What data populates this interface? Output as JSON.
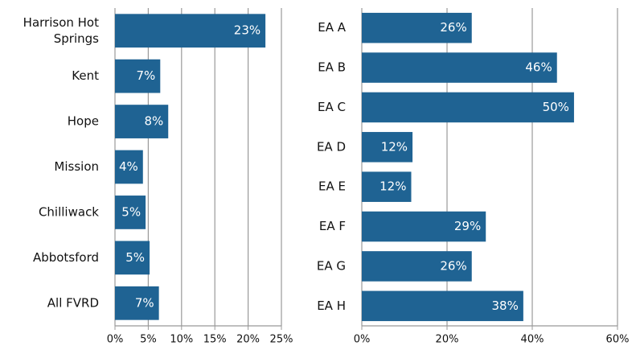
{
  "chart_data": [
    {
      "type": "bar",
      "orientation": "horizontal",
      "color": "#1f6393",
      "grid": true,
      "categories": [
        "Harrison Hot\nSprings",
        "Kent",
        "Hope",
        "Mission",
        "Chilliwack",
        "Abbotsford",
        "All FVRD"
      ],
      "values": [
        22.6,
        6.8,
        8.0,
        4.2,
        4.6,
        5.2,
        6.6
      ],
      "value_labels": [
        "23%",
        "7%",
        "8%",
        "4%",
        "5%",
        "5%",
        "7%"
      ],
      "xlim": [
        0,
        25
      ],
      "xticks": [
        {
          "value": 0,
          "label": "0%"
        },
        {
          "value": 5,
          "label": "5%"
        },
        {
          "value": 10,
          "label": "10%"
        },
        {
          "value": 15,
          "label": "15%"
        },
        {
          "value": 20,
          "label": "20%"
        },
        {
          "value": 25,
          "label": "25%"
        }
      ]
    },
    {
      "type": "bar",
      "orientation": "horizontal",
      "color": "#1f6393",
      "grid": true,
      "categories": [
        "EA A",
        "EA B",
        "EA C",
        "EA D",
        "EA E",
        "EA F",
        "EA G",
        "EA H"
      ],
      "values": [
        25.8,
        45.8,
        49.8,
        11.9,
        11.6,
        29.1,
        25.8,
        37.9
      ],
      "value_labels": [
        "26%",
        "46%",
        "50%",
        "12%",
        "12%",
        "29%",
        "26%",
        "38%"
      ],
      "xlim": [
        0,
        60
      ],
      "xticks": [
        {
          "value": 0,
          "label": "0%"
        },
        {
          "value": 20,
          "label": "20%"
        },
        {
          "value": 40,
          "label": "40%"
        },
        {
          "value": 60,
          "label": "60%"
        }
      ]
    }
  ]
}
